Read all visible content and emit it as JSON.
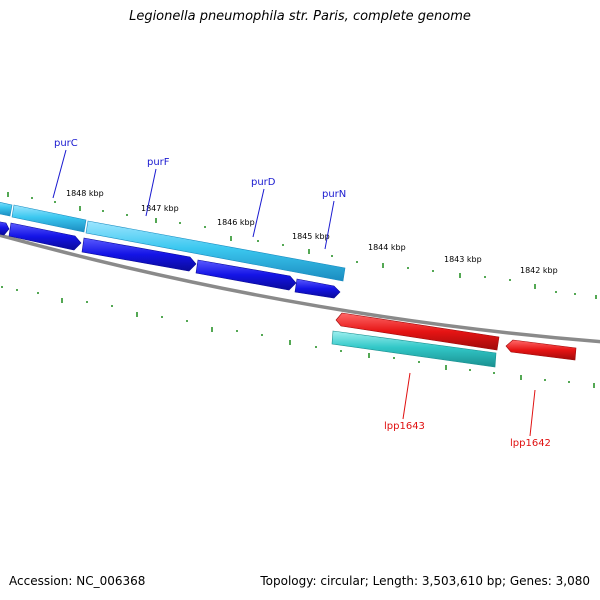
{
  "title": "Legionella pneumophila str. Paris, complete genome",
  "footer": {
    "accession_label": "Accession:",
    "accession": "NC_006368",
    "topology_text": "Topology: circular; Length: 3,503,610 bp; Genes: 3,080"
  },
  "kbp_ticks": [
    {
      "label": "1848 kbp"
    },
    {
      "label": "1847 kbp"
    },
    {
      "label": "1846 kbp"
    },
    {
      "label": "1845 kbp"
    },
    {
      "label": "1844 kbp"
    },
    {
      "label": "1843 kbp"
    },
    {
      "label": "1842 kbp"
    }
  ],
  "genes": [
    {
      "name": "purC",
      "strand": "forward"
    },
    {
      "name": "purF",
      "strand": "forward"
    },
    {
      "name": "purD",
      "strand": "forward"
    },
    {
      "name": "purN",
      "strand": "forward"
    },
    {
      "name": "lpp1643",
      "strand": "reverse"
    },
    {
      "name": "lpp1642",
      "strand": "reverse"
    }
  ],
  "colors": {
    "forward_cds": "#1414e6",
    "forward_feature": "#3cc8f0",
    "reverse_cds": "#e61414",
    "reverse_feature": "#32c8c8",
    "backbone": "#8a8a8a",
    "tick": "#1a8a1a",
    "forward_label": "#1a1ad0",
    "reverse_label": "#e01010"
  }
}
